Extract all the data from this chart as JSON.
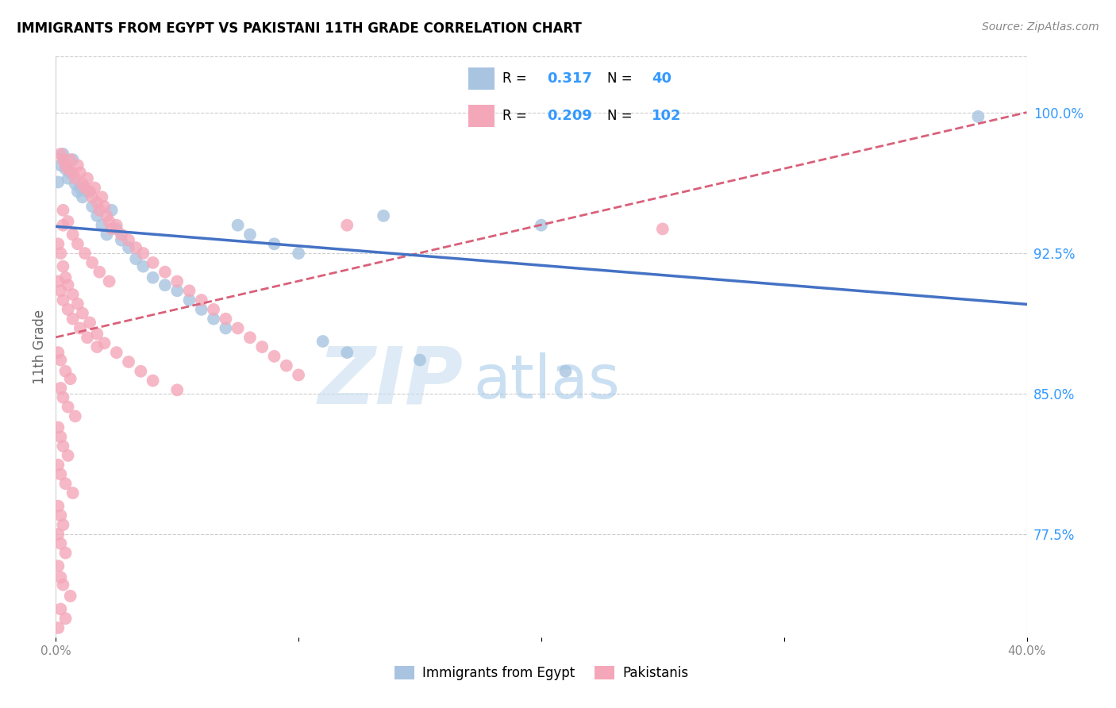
{
  "title": "IMMIGRANTS FROM EGYPT VS PAKISTANI 11TH GRADE CORRELATION CHART",
  "source": "Source: ZipAtlas.com",
  "ylabel": "11th Grade",
  "yticks": [
    "100.0%",
    "92.5%",
    "85.0%",
    "77.5%"
  ],
  "ytick_vals": [
    1.0,
    0.925,
    0.85,
    0.775
  ],
  "xlim": [
    0.0,
    0.4
  ],
  "ylim": [
    0.72,
    1.03
  ],
  "egypt_color": "#a8c4e0",
  "pakistan_color": "#f4a7b9",
  "egypt_line_color": "#4472c4",
  "pakistan_line_color": "#d9607a",
  "watermark_zip": "ZIP",
  "watermark_atlas": "atlas",
  "egypt_points": [
    [
      0.001,
      0.963
    ],
    [
      0.002,
      0.972
    ],
    [
      0.003,
      0.978
    ],
    [
      0.004,
      0.97
    ],
    [
      0.005,
      0.965
    ],
    [
      0.006,
      0.968
    ],
    [
      0.007,
      0.975
    ],
    [
      0.008,
      0.962
    ],
    [
      0.009,
      0.958
    ],
    [
      0.01,
      0.96
    ],
    [
      0.011,
      0.955
    ],
    [
      0.013,
      0.958
    ],
    [
      0.015,
      0.95
    ],
    [
      0.017,
      0.945
    ],
    [
      0.019,
      0.94
    ],
    [
      0.021,
      0.935
    ],
    [
      0.023,
      0.948
    ],
    [
      0.025,
      0.938
    ],
    [
      0.027,
      0.932
    ],
    [
      0.03,
      0.928
    ],
    [
      0.033,
      0.922
    ],
    [
      0.036,
      0.918
    ],
    [
      0.04,
      0.912
    ],
    [
      0.045,
      0.908
    ],
    [
      0.05,
      0.905
    ],
    [
      0.055,
      0.9
    ],
    [
      0.06,
      0.895
    ],
    [
      0.065,
      0.89
    ],
    [
      0.07,
      0.885
    ],
    [
      0.075,
      0.94
    ],
    [
      0.08,
      0.935
    ],
    [
      0.09,
      0.93
    ],
    [
      0.1,
      0.925
    ],
    [
      0.11,
      0.878
    ],
    [
      0.12,
      0.872
    ],
    [
      0.15,
      0.868
    ],
    [
      0.2,
      0.94
    ],
    [
      0.21,
      0.862
    ],
    [
      0.38,
      0.998
    ],
    [
      0.135,
      0.945
    ]
  ],
  "pakistan_points": [
    [
      0.002,
      0.978
    ],
    [
      0.003,
      0.975
    ],
    [
      0.004,
      0.972
    ],
    [
      0.005,
      0.97
    ],
    [
      0.006,
      0.975
    ],
    [
      0.007,
      0.968
    ],
    [
      0.008,
      0.965
    ],
    [
      0.009,
      0.972
    ],
    [
      0.01,
      0.968
    ],
    [
      0.011,
      0.962
    ],
    [
      0.012,
      0.96
    ],
    [
      0.013,
      0.965
    ],
    [
      0.014,
      0.958
    ],
    [
      0.015,
      0.955
    ],
    [
      0.016,
      0.96
    ],
    [
      0.017,
      0.952
    ],
    [
      0.018,
      0.948
    ],
    [
      0.019,
      0.955
    ],
    [
      0.02,
      0.95
    ],
    [
      0.021,
      0.945
    ],
    [
      0.022,
      0.942
    ],
    [
      0.023,
      0.938
    ],
    [
      0.025,
      0.94
    ],
    [
      0.027,
      0.935
    ],
    [
      0.03,
      0.932
    ],
    [
      0.033,
      0.928
    ],
    [
      0.036,
      0.925
    ],
    [
      0.04,
      0.92
    ],
    [
      0.045,
      0.915
    ],
    [
      0.05,
      0.91
    ],
    [
      0.055,
      0.905
    ],
    [
      0.06,
      0.9
    ],
    [
      0.065,
      0.895
    ],
    [
      0.07,
      0.89
    ],
    [
      0.075,
      0.885
    ],
    [
      0.08,
      0.88
    ],
    [
      0.085,
      0.875
    ],
    [
      0.09,
      0.87
    ],
    [
      0.095,
      0.865
    ],
    [
      0.1,
      0.86
    ],
    [
      0.003,
      0.948
    ],
    [
      0.005,
      0.942
    ],
    [
      0.007,
      0.935
    ],
    [
      0.009,
      0.93
    ],
    [
      0.012,
      0.925
    ],
    [
      0.015,
      0.92
    ],
    [
      0.018,
      0.915
    ],
    [
      0.022,
      0.91
    ],
    [
      0.001,
      0.93
    ],
    [
      0.002,
      0.925
    ],
    [
      0.003,
      0.918
    ],
    [
      0.004,
      0.912
    ],
    [
      0.005,
      0.908
    ],
    [
      0.007,
      0.903
    ],
    [
      0.009,
      0.898
    ],
    [
      0.011,
      0.893
    ],
    [
      0.014,
      0.888
    ],
    [
      0.017,
      0.882
    ],
    [
      0.02,
      0.877
    ],
    [
      0.025,
      0.872
    ],
    [
      0.03,
      0.867
    ],
    [
      0.035,
      0.862
    ],
    [
      0.04,
      0.857
    ],
    [
      0.05,
      0.852
    ],
    [
      0.001,
      0.91
    ],
    [
      0.002,
      0.905
    ],
    [
      0.003,
      0.9
    ],
    [
      0.005,
      0.895
    ],
    [
      0.007,
      0.89
    ],
    [
      0.01,
      0.885
    ],
    [
      0.013,
      0.88
    ],
    [
      0.017,
      0.875
    ],
    [
      0.001,
      0.872
    ],
    [
      0.002,
      0.868
    ],
    [
      0.004,
      0.862
    ],
    [
      0.006,
      0.858
    ],
    [
      0.002,
      0.853
    ],
    [
      0.003,
      0.848
    ],
    [
      0.005,
      0.843
    ],
    [
      0.008,
      0.838
    ],
    [
      0.001,
      0.832
    ],
    [
      0.002,
      0.827
    ],
    [
      0.003,
      0.822
    ],
    [
      0.005,
      0.817
    ],
    [
      0.001,
      0.812
    ],
    [
      0.002,
      0.807
    ],
    [
      0.004,
      0.802
    ],
    [
      0.007,
      0.797
    ],
    [
      0.001,
      0.79
    ],
    [
      0.002,
      0.785
    ],
    [
      0.003,
      0.78
    ],
    [
      0.001,
      0.775
    ],
    [
      0.002,
      0.77
    ],
    [
      0.004,
      0.765
    ],
    [
      0.001,
      0.758
    ],
    [
      0.002,
      0.752
    ],
    [
      0.003,
      0.748
    ],
    [
      0.006,
      0.742
    ],
    [
      0.002,
      0.735
    ],
    [
      0.004,
      0.73
    ],
    [
      0.001,
      0.725
    ],
    [
      0.25,
      0.938
    ],
    [
      0.003,
      0.94
    ],
    [
      0.12,
      0.94
    ]
  ]
}
